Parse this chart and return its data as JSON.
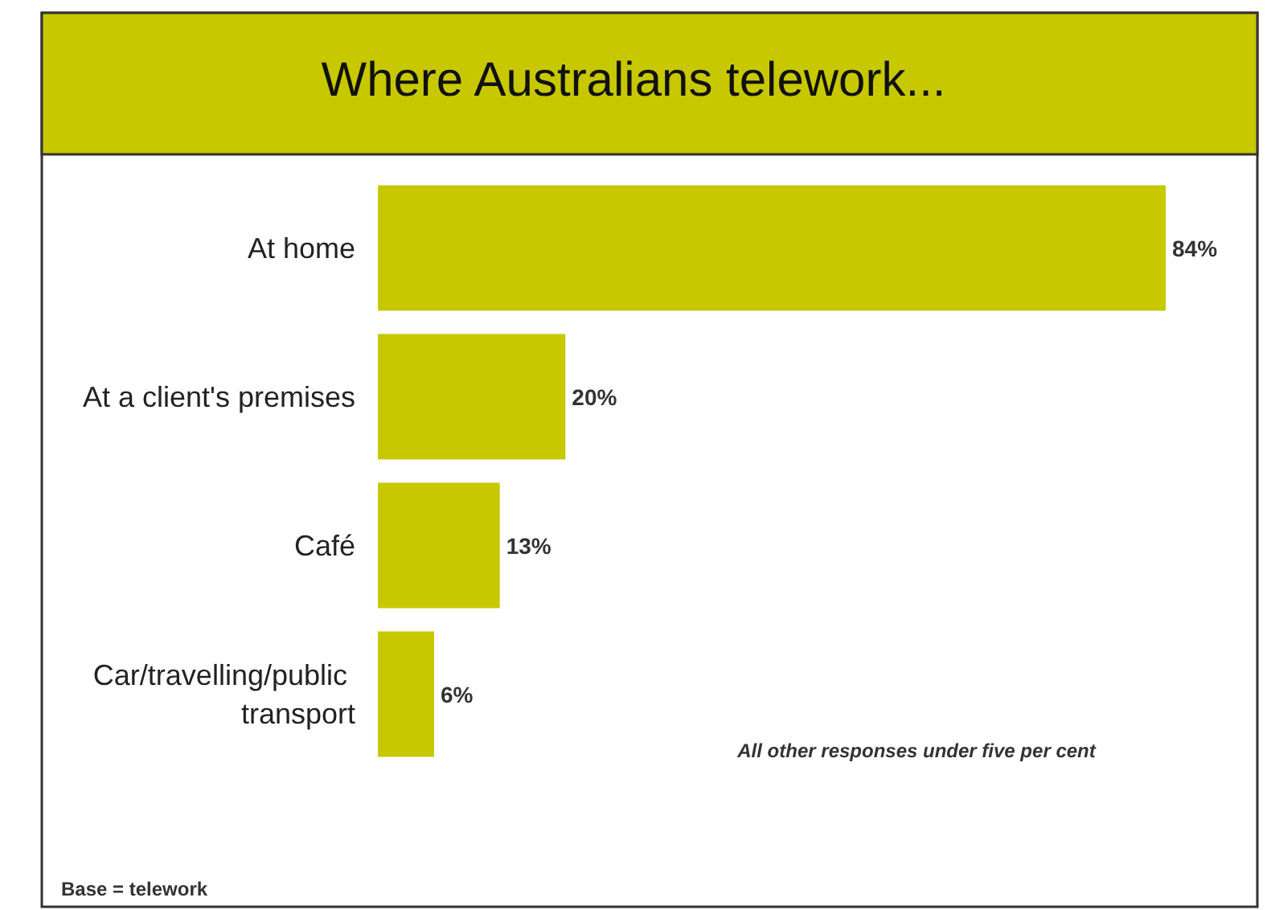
{
  "chart_data": {
    "type": "bar",
    "orientation": "horizontal",
    "title": "Where Australians telework...",
    "categories": [
      "At home",
      "At a client's premises",
      "Café",
      "Car/travelling/public transport"
    ],
    "values": [
      84,
      20,
      13,
      6
    ],
    "color": "#c8c800",
    "value_labels": [
      "84%",
      "20%",
      "13%",
      "6%"
    ],
    "annotations": [
      "All other responses under five per cent",
      "Base = telework"
    ]
  }
}
